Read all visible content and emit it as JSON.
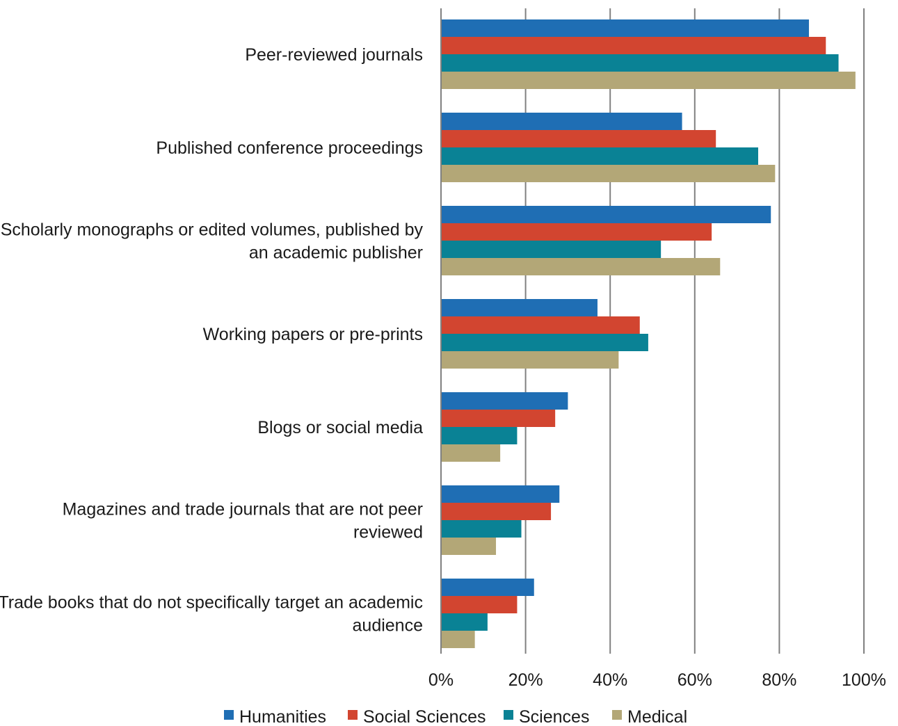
{
  "chart_data": {
    "type": "bar",
    "orientation": "horizontal",
    "title": "",
    "xlabel": "",
    "ylabel": "",
    "xlim": [
      0,
      100
    ],
    "x_ticks": [
      "0%",
      "20%",
      "40%",
      "60%",
      "80%",
      "100%"
    ],
    "grid": "vertical",
    "legend_position": "bottom",
    "categories": [
      [
        "Peer-reviewed journals"
      ],
      [
        "Published conference proceedings"
      ],
      [
        "Scholarly monographs or edited volumes, published by",
        "an academic publisher"
      ],
      [
        "Working papers or pre-prints"
      ],
      [
        "Blogs or social media"
      ],
      [
        "Magazines and trade journals that are not peer",
        "reviewed"
      ],
      [
        "Trade books that do not specifically target an academic",
        "audience"
      ]
    ],
    "series": [
      {
        "name": "Humanities",
        "color": "#1f6eb4",
        "values": [
          87,
          57,
          78,
          37,
          30,
          28,
          22
        ]
      },
      {
        "name": "Social Sciences",
        "color": "#d24530",
        "values": [
          91,
          65,
          64,
          47,
          27,
          26,
          18
        ]
      },
      {
        "name": "Sciences",
        "color": "#0a8295",
        "values": [
          94,
          75,
          52,
          49,
          18,
          19,
          11
        ]
      },
      {
        "name": "Medical",
        "color": "#b3a777",
        "values": [
          98,
          79,
          66,
          42,
          14,
          13,
          8
        ]
      }
    ]
  }
}
